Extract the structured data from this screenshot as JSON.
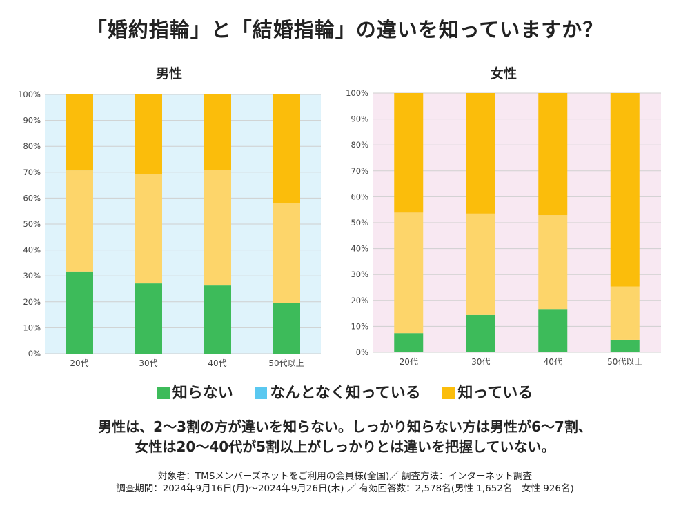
{
  "title": "「婚約指輪」と「結婚指輪」の違いを知っていますか？",
  "legend": [
    {
      "label": "知らない",
      "color": "#3dbb5a"
    },
    {
      "label": "なんとなく知っている",
      "color": "#5ac8f0"
    },
    {
      "label": "知っている",
      "color": "#fbbd0b"
    }
  ],
  "summary": {
    "line1": "男性は、2〜3割の方が違いを知らない。しっかり知らない方は男性が6〜7割、",
    "line2": "女性は20〜40代が5割以上がしっかりとは違いを把握していない。"
  },
  "footnote": {
    "line1": "対象者：TMSメンバーズネットをご利用の会員様(全国)／ 調査方法：インターネット調査",
    "line2": "調査期間：2024年9月16日(月)〜2024年9月26日(木) ／ 有効回答数：2,578名(男性 1,652名　女性 926名)"
  },
  "chart_data": [
    {
      "type": "bar",
      "stacked": true,
      "title": "男性",
      "background": "#dff3fb",
      "categories": [
        "20代",
        "30代",
        "40代",
        "50代以上"
      ],
      "y_ticks": [
        "0%",
        "10%",
        "20%",
        "30%",
        "40%",
        "50%",
        "60%",
        "70%",
        "80%",
        "90%",
        "100%"
      ],
      "ylim": [
        0,
        100
      ],
      "series": [
        {
          "name": "知らない",
          "color": "#3dbb5a",
          "values": [
            31.7,
            27.1,
            26.3,
            19.6
          ]
        },
        {
          "name": "なんとなく知っている",
          "color": "#fdd56a",
          "values": [
            39.0,
            42.1,
            44.5,
            38.4
          ]
        },
        {
          "name": "知っている",
          "color": "#fbbd0b",
          "values": [
            29.3,
            30.8,
            29.2,
            42.0
          ]
        }
      ]
    },
    {
      "type": "bar",
      "stacked": true,
      "title": "女性",
      "background": "#f8e8f2",
      "categories": [
        "20代",
        "30代",
        "40代",
        "50代以上"
      ],
      "y_ticks": [
        "0%",
        "10%",
        "20%",
        "30%",
        "40%",
        "50%",
        "60%",
        "70%",
        "80%",
        "90%",
        "100%"
      ],
      "ylim": [
        0,
        100
      ],
      "series": [
        {
          "name": "知らない",
          "color": "#3dbb5a",
          "values": [
            7.4,
            14.4,
            16.7,
            4.8
          ]
        },
        {
          "name": "なんとなく知っている",
          "color": "#fdd56a",
          "values": [
            46.5,
            39.1,
            36.2,
            20.6
          ]
        },
        {
          "name": "知っている",
          "color": "#fbbd0b",
          "values": [
            46.1,
            46.5,
            47.1,
            74.6
          ]
        }
      ]
    }
  ]
}
